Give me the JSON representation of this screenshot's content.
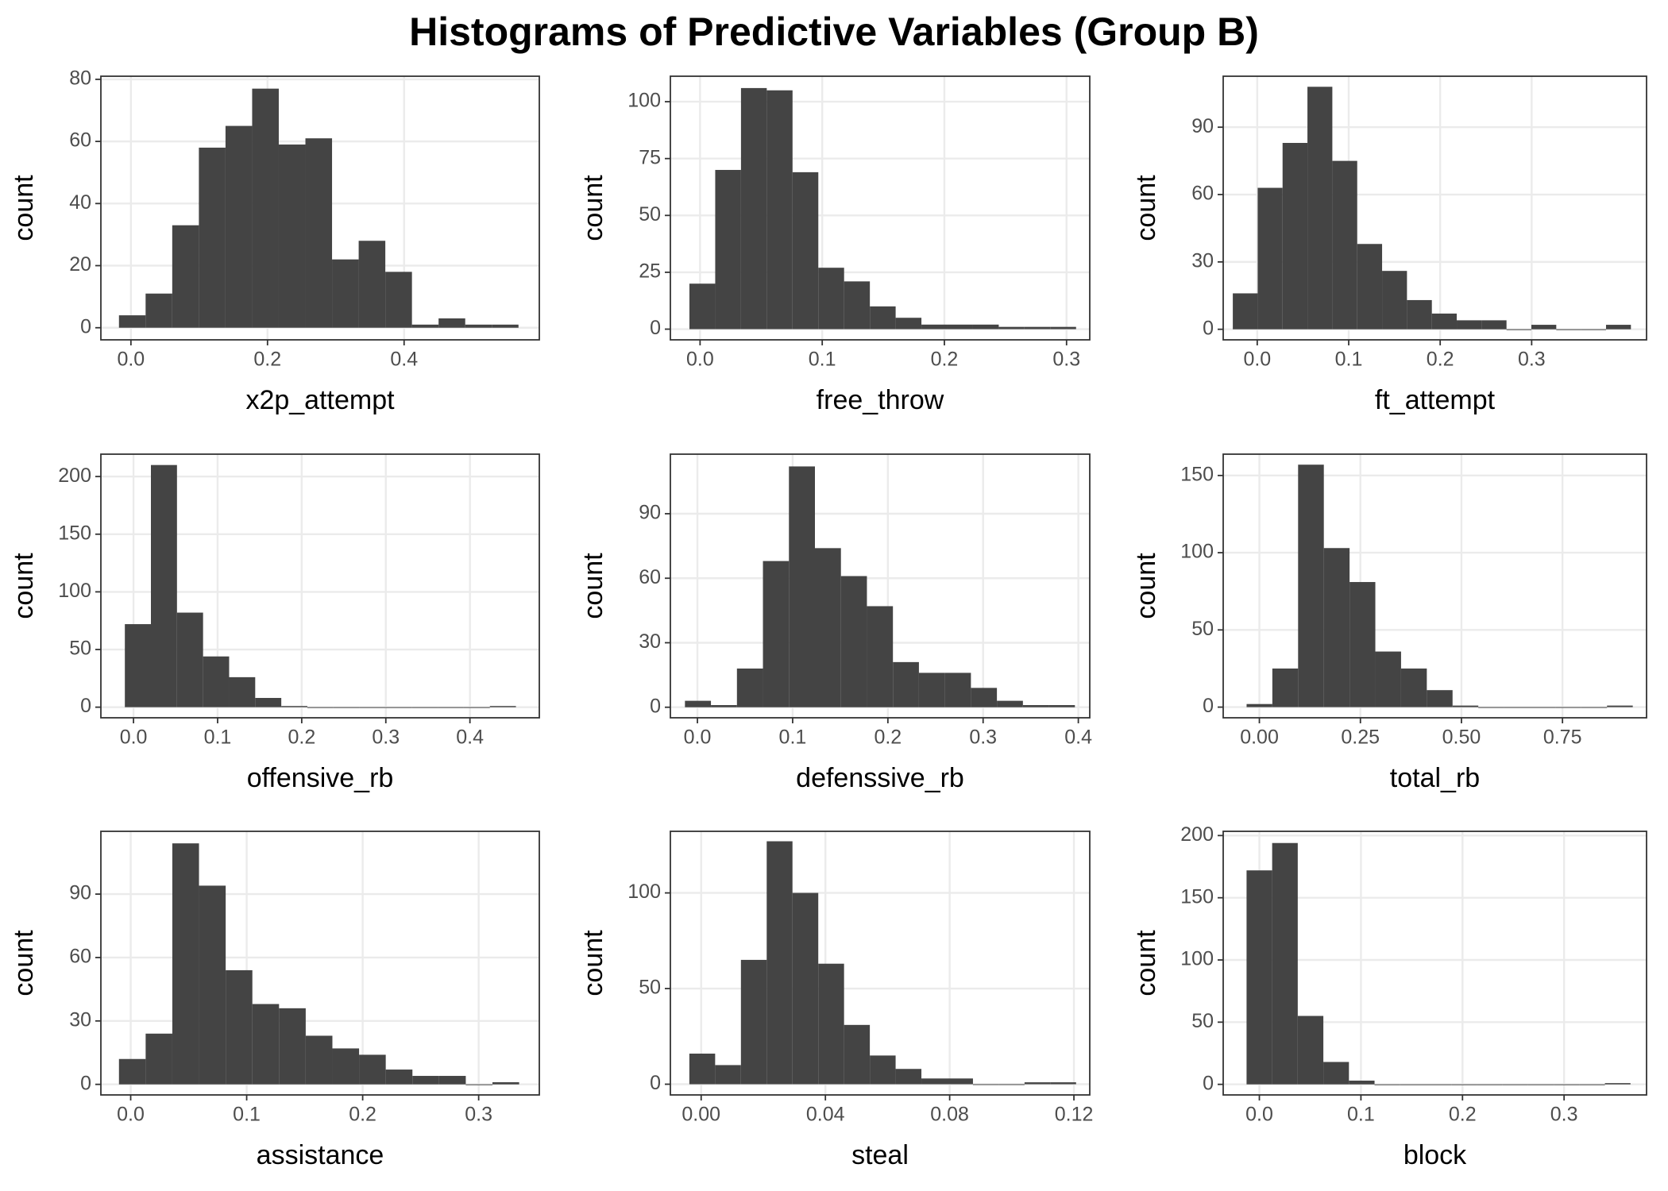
{
  "title": "Histograms of Predictive Variables (Group B)",
  "chart_data": [
    {
      "type": "histogram",
      "xlabel": "x2p_attempt",
      "ylabel": "count",
      "color": "#444444",
      "grid": true,
      "bins": [
        -0.0175,
        0.0215,
        0.0605,
        0.0995,
        0.1385,
        0.1775,
        0.2165,
        0.2555,
        0.2945,
        0.3335,
        0.3725,
        0.4115,
        0.4505,
        0.4895,
        0.5285,
        0.5675
      ],
      "counts": [
        4,
        11,
        33,
        58,
        65,
        77,
        59,
        61,
        22,
        28,
        18,
        1,
        3,
        1,
        1
      ],
      "xlim": [
        -0.044,
        0.598
      ],
      "ylim": [
        -3.9,
        81
      ],
      "xticks": [
        {
          "value": 0,
          "label": "0.0"
        },
        0.2,
        0.4
      ],
      "yticks": [
        0,
        20,
        40,
        60,
        80
      ]
    },
    {
      "type": "histogram",
      "xlabel": "free_throw",
      "ylabel": "count",
      "color": "#444444",
      "grid": true,
      "bins": [
        -0.0087,
        0.0124,
        0.0335,
        0.0546,
        0.0757,
        0.0968,
        0.1179,
        0.139,
        0.1601,
        0.1812,
        0.2023,
        0.2234,
        0.2445,
        0.2656,
        0.2867,
        0.3078
      ],
      "counts": [
        20,
        70,
        106,
        105,
        69,
        27,
        21,
        10,
        5,
        2,
        2,
        2,
        1,
        1,
        1
      ],
      "xlim": [
        -0.0243,
        0.319
      ],
      "ylim": [
        -4.7,
        111.2
      ],
      "xticks": [
        {
          "value": 0,
          "label": "0.0"
        },
        0.1,
        0.2,
        0.3
      ],
      "yticks": [
        0,
        25,
        50,
        75,
        100
      ]
    },
    {
      "type": "histogram",
      "xlabel": "ft_attempt",
      "ylabel": "count",
      "color": "#444444",
      "grid": true,
      "bins": [
        -0.0267,
        0.0005,
        0.0277,
        0.0549,
        0.0821,
        0.1093,
        0.1365,
        0.1637,
        0.1909,
        0.2181,
        0.2453,
        0.2725,
        0.2997,
        0.3269,
        0.3541,
        0.3813,
        0.4085
      ],
      "counts": [
        16,
        63,
        83,
        108,
        75,
        38,
        26,
        13,
        7,
        4,
        4,
        0,
        2,
        0,
        0,
        2
      ],
      "xlim": [
        -0.0372,
        0.4256
      ],
      "ylim": [
        -4.7,
        112.7
      ],
      "xticks": [
        {
          "value": 0,
          "label": "0.0"
        },
        0.1,
        0.2,
        0.3
      ],
      "yticks": [
        0,
        30,
        60,
        90
      ]
    },
    {
      "type": "histogram",
      "xlabel": "offensive_rb",
      "ylabel": "count",
      "color": "#444444",
      "grid": true,
      "bins": [
        -0.0103,
        0.0207,
        0.0517,
        0.0827,
        0.1137,
        0.1447,
        0.1757,
        0.2067,
        0.2377,
        0.2687,
        0.2997,
        0.3307,
        0.3617,
        0.3927,
        0.4237,
        0.4547
      ],
      "counts": [
        72,
        210,
        82,
        44,
        26,
        8,
        1,
        0,
        0,
        0,
        0,
        0,
        0,
        0,
        1
      ],
      "xlim": [
        -0.0388,
        0.4825
      ],
      "ylim": [
        -9.2,
        219.4
      ],
      "xticks": [
        {
          "value": 0,
          "label": "0.0"
        },
        0.1,
        0.2,
        0.3,
        0.4
      ],
      "yticks": [
        0,
        50,
        100,
        150,
        200
      ]
    },
    {
      "type": "histogram",
      "xlabel": "defenssive_rb",
      "ylabel": "count",
      "color": "#444444",
      "grid": true,
      "bins": [
        -0.0131,
        0.0142,
        0.0415,
        0.0688,
        0.0961,
        0.1234,
        0.1507,
        0.178,
        0.2053,
        0.2326,
        0.2599,
        0.2872,
        0.3145,
        0.3418,
        0.3691,
        0.3964
      ],
      "counts": [
        3,
        1,
        18,
        68,
        112,
        74,
        61,
        47,
        21,
        16,
        16,
        9,
        3,
        1,
        1
      ],
      "xlim": [
        -0.0284,
        0.412
      ],
      "ylim": [
        -4.9,
        117.7
      ],
      "xticks": [
        {
          "value": 0,
          "label": "0.0"
        },
        0.1,
        0.2,
        0.3,
        0.4
      ],
      "yticks": [
        0,
        30,
        60,
        90
      ]
    },
    {
      "type": "histogram",
      "xlabel": "total_rb",
      "ylabel": "count",
      "color": "#444444",
      "grid": true,
      "bins": [
        -0.0316,
        0.0321,
        0.0958,
        0.1595,
        0.2232,
        0.2869,
        0.3506,
        0.4143,
        0.478,
        0.5417,
        0.6054,
        0.6691,
        0.7328,
        0.7965,
        0.8602,
        0.9239
      ],
      "counts": [
        2,
        25,
        157,
        103,
        81,
        36,
        25,
        11,
        1,
        0,
        0,
        0,
        0,
        0,
        1
      ],
      "xlim": [
        -0.0895,
        0.958
      ],
      "ylim": [
        -6.9,
        163.8
      ],
      "xticks": [
        {
          "value": 0,
          "label": "0.00"
        },
        0.25,
        {
          "value": 0.5,
          "label": "0.50"
        },
        0.75
      ],
      "yticks": [
        0,
        50,
        100,
        150
      ]
    },
    {
      "type": "histogram",
      "xlabel": "assistance",
      "ylabel": "count",
      "color": "#444444",
      "grid": true,
      "bins": [
        -0.0101,
        0.0129,
        0.0359,
        0.0589,
        0.0819,
        0.1049,
        0.1279,
        0.1509,
        0.1739,
        0.1969,
        0.2199,
        0.2429,
        0.2659,
        0.2889,
        0.3119,
        0.3349
      ],
      "counts": [
        12,
        24,
        114,
        94,
        54,
        38,
        36,
        23,
        17,
        14,
        7,
        4,
        4,
        0,
        1
      ],
      "xlim": [
        -0.0257,
        0.3523
      ],
      "ylim": [
        -5.0,
        119.7
      ],
      "xticks": [
        {
          "value": 0,
          "label": "0.0"
        },
        0.1,
        0.2,
        0.3
      ],
      "yticks": [
        0,
        30,
        60,
        90
      ]
    },
    {
      "type": "histogram",
      "xlabel": "steal",
      "ylabel": "count",
      "color": "#444444",
      "grid": true,
      "bins": [
        -0.0038,
        0.0045,
        0.0128,
        0.0211,
        0.0294,
        0.0377,
        0.046,
        0.0543,
        0.0626,
        0.0709,
        0.0792,
        0.0875,
        0.0958,
        0.1041,
        0.1124,
        0.1207
      ],
      "counts": [
        16,
        10,
        65,
        127,
        100,
        63,
        31,
        15,
        8,
        3,
        3,
        0,
        0,
        1,
        1
      ],
      "xlim": [
        -0.00991,
        0.1251
      ],
      "ylim": [
        -5.6,
        132.2
      ],
      "xticks": [
        {
          "value": 0,
          "label": "0.00"
        },
        0.04,
        0.08,
        0.12
      ],
      "yticks": [
        0,
        50,
        100
      ]
    },
    {
      "type": "histogram",
      "xlabel": "block",
      "ylabel": "count",
      "color": "#444444",
      "grid": true,
      "bins": [
        -0.0126,
        0.0126,
        0.0378,
        0.063,
        0.0882,
        0.1134,
        0.1386,
        0.1638,
        0.189,
        0.2142,
        0.2394,
        0.2646,
        0.2898,
        0.315,
        0.3402,
        0.3654
      ],
      "counts": [
        172,
        194,
        55,
        18,
        3,
        0,
        0,
        0,
        0,
        0,
        0,
        0,
        0,
        0,
        1
      ],
      "xlim": [
        -0.0356,
        0.3812
      ],
      "ylim": [
        -8.5,
        203.4
      ],
      "xticks": [
        {
          "value": 0,
          "label": "0.0"
        },
        0.1,
        0.2,
        0.3
      ],
      "yticks": [
        0,
        50,
        100,
        150,
        200
      ]
    }
  ]
}
